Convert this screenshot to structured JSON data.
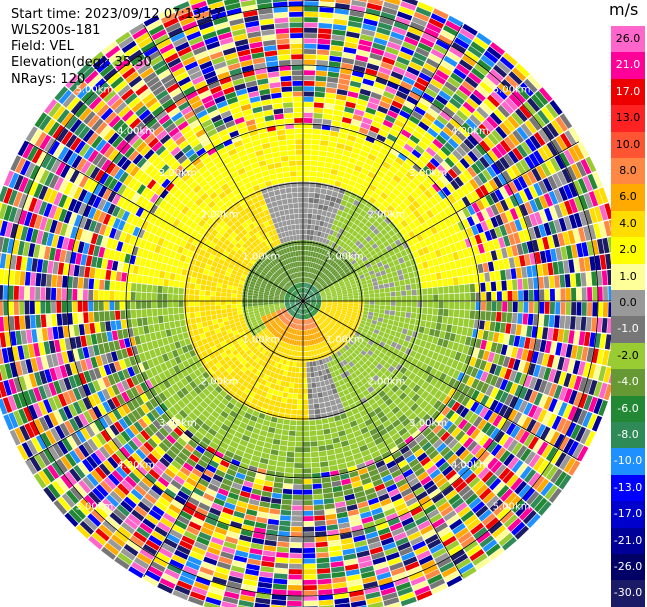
{
  "header": {
    "start_time": "Start time: 2023/09/12 07:13:17",
    "instrument": "WLS200s-181",
    "field": "Field: VEL",
    "elevation": "Elevation(deg): 35.30",
    "nrays": "NRays: 120"
  },
  "colorbar": {
    "title": "m/s",
    "ticks": [
      "26.0",
      "21.0",
      "17.0",
      "13.0",
      "10.0",
      "8.0",
      "6.0",
      "4.0",
      "2.0",
      "1.0",
      "0.0",
      "-1.0",
      "-2.0",
      "-4.0",
      "-6.0",
      "-8.0",
      "-10.0",
      "-13.0",
      "-17.0",
      "-21.0",
      "-26.0",
      "-30.0"
    ],
    "colors": [
      "#ff66cc",
      "#ff0099",
      "#ee0000",
      "#ff2222",
      "#ff5533",
      "#ff8844",
      "#ffaa00",
      "#ffdd00",
      "#ffff00",
      "#ffff99",
      "#999999",
      "#777777",
      "#99cc33",
      "#669933",
      "#228833",
      "#2e8b57",
      "#1e90ff",
      "#0000ff",
      "#0000cc",
      "#000099",
      "#000066",
      "#1a1a66"
    ]
  },
  "chart_data": {
    "type": "heatmap",
    "projection": "polar PPI",
    "field": "VEL",
    "units": "m/s",
    "nrays": 120,
    "range_rings_km": [
      1.0,
      2.0,
      3.0,
      4.0,
      5.0
    ],
    "ring_labels": [
      "1.00km",
      "2.00km",
      "3.00km",
      "4.00km",
      "5.00km"
    ],
    "color_range": [
      -30.0,
      26.0
    ],
    "max_range_km": 5.4
  }
}
